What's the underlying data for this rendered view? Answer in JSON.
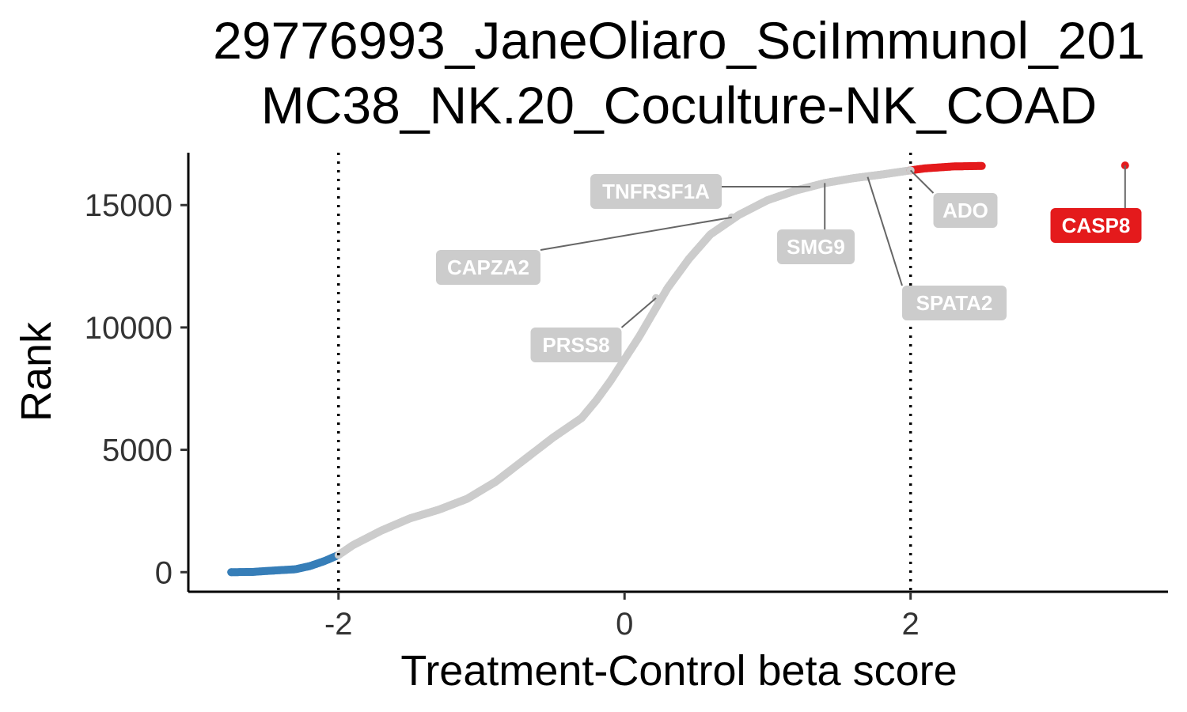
{
  "chart_data": {
    "type": "scatter",
    "title": [
      "29776993_JaneOliaro_SciImmunol_201",
      "MC38_NK.20_Coculture-NK_COAD"
    ],
    "xlabel": "Treatment-Control beta score",
    "ylabel": "Rank",
    "xlim": [
      -3.05,
      3.8
    ],
    "ylim": [
      -800,
      17400
    ],
    "x_ticks": [
      -2,
      0,
      2
    ],
    "x_tick_labels": [
      "-2",
      "0",
      "2"
    ],
    "y_ticks": [
      0,
      5000,
      10000,
      15000
    ],
    "y_tick_labels": [
      "0",
      "5000",
      "10000",
      "15000"
    ],
    "vlines": [
      -2,
      2
    ],
    "grid": false,
    "colors": {
      "negative": "#377EB8",
      "neutral": "#CCCCCC",
      "positive": "#E41A1C",
      "label_neutral_bg": "#CCCCCC",
      "label_positive_bg": "#E41A1C",
      "label_text": "#FFFFFF",
      "connector": "#666666"
    },
    "curve_knots": [
      [
        -2.75,
        0
      ],
      [
        -2.6,
        10
      ],
      [
        -2.5,
        50
      ],
      [
        -2.3,
        120
      ],
      [
        -2.2,
        250
      ],
      [
        -2.1,
        450
      ],
      [
        -2.0,
        700
      ],
      [
        -1.9,
        1100
      ],
      [
        -1.7,
        1700
      ],
      [
        -1.5,
        2200
      ],
      [
        -1.3,
        2550
      ],
      [
        -1.1,
        3000
      ],
      [
        -0.9,
        3700
      ],
      [
        -0.7,
        4600
      ],
      [
        -0.5,
        5500
      ],
      [
        -0.3,
        6300
      ],
      [
        -0.2,
        7000
      ],
      [
        -0.1,
        7800
      ],
      [
        0.0,
        8700
      ],
      [
        0.1,
        9600
      ],
      [
        0.2,
        10600
      ],
      [
        0.3,
        11600
      ],
      [
        0.45,
        12800
      ],
      [
        0.6,
        13800
      ],
      [
        0.8,
        14600
      ],
      [
        1.0,
        15200
      ],
      [
        1.2,
        15600
      ],
      [
        1.4,
        15900
      ],
      [
        1.6,
        16100
      ],
      [
        1.8,
        16250
      ],
      [
        2.0,
        16420
      ],
      [
        2.1,
        16500
      ],
      [
        2.3,
        16580
      ],
      [
        2.5,
        16600
      ],
      [
        3.5,
        16620
      ]
    ],
    "groups": [
      {
        "name": "negative",
        "x_range": [
          -2.75,
          -2.0
        ]
      },
      {
        "name": "neutral",
        "x_range": [
          -2.0,
          2.0
        ]
      },
      {
        "name": "positive",
        "x_range": [
          2.0,
          2.5
        ]
      }
    ],
    "highlighted_points": [
      {
        "gene": "CASP8",
        "x": 3.5,
        "y": 16620,
        "group": "positive"
      },
      {
        "gene": "ADO",
        "x": 2.0,
        "y": 16420,
        "group": "neutral"
      },
      {
        "gene": "SPATA2",
        "x": 1.7,
        "y": 16150,
        "group": "neutral"
      },
      {
        "gene": "SMG9",
        "x": 1.4,
        "y": 15900,
        "group": "neutral"
      },
      {
        "gene": "TNFRSF1A",
        "x": 1.3,
        "y": 15750,
        "group": "neutral"
      },
      {
        "gene": "CAPZA2",
        "x": 0.75,
        "y": 14500,
        "group": "neutral"
      },
      {
        "gene": "PRSS8",
        "x": 0.22,
        "y": 11200,
        "group": "neutral"
      }
    ]
  }
}
